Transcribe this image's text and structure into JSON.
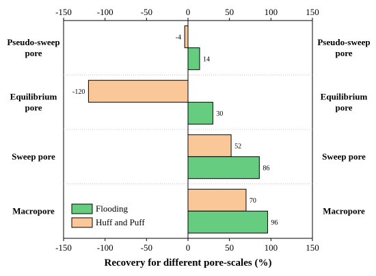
{
  "chart_data": {
    "type": "bar",
    "orientation": "horizontal",
    "categories": [
      [
        "Pseudo-sweep",
        "pore"
      ],
      [
        "Equilibrium",
        "pore"
      ],
      [
        "Sweep pore"
      ],
      [
        "Macropore"
      ]
    ],
    "series": [
      {
        "name": "Huff and Puff",
        "values": [
          -4,
          -120,
          52,
          70
        ],
        "color": "#FAC898"
      },
      {
        "name": "Flooding",
        "values": [
          14,
          30,
          86,
          96
        ],
        "color": "#66CC80"
      }
    ],
    "xlabel": "Recovery for different pore-scales (%)",
    "xlim": [
      -150,
      150
    ],
    "xticks": [
      -150,
      -100,
      -50,
      0,
      50,
      100,
      150
    ],
    "legend_order": [
      "Flooding",
      "Huff and Puff"
    ],
    "legend_position": "bottom-left",
    "category_separators": "dotted"
  }
}
